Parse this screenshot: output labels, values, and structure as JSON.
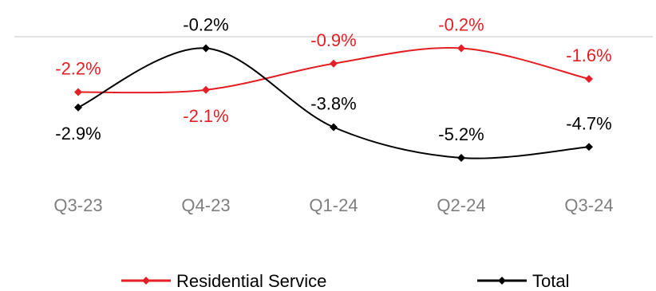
{
  "chart_data": {
    "type": "line",
    "categories": [
      "Q3-23",
      "Q4-23",
      "Q1-24",
      "Q2-24",
      "Q3-24"
    ],
    "series": [
      {
        "name": "Residential Service",
        "values": [
          -2.2,
          -2.1,
          -0.9,
          -0.2,
          -1.6
        ],
        "labels": [
          "-2.2%",
          "-2.1%",
          "-0.9%",
          "-0.2%",
          "-1.6%"
        ],
        "color": "#e31e24"
      },
      {
        "name": "Total",
        "values": [
          -2.9,
          -0.2,
          -3.8,
          -5.2,
          -4.7
        ],
        "labels": [
          "-2.9%",
          "-0.2%",
          "-3.8%",
          "-5.2%",
          "-4.7%"
        ],
        "color": "#000000"
      }
    ],
    "ylim": [
      -5.2,
      0
    ],
    "baseline_color": "#d9d9d9",
    "smooth": true,
    "markers": "diamond",
    "legend_position": "bottom"
  }
}
